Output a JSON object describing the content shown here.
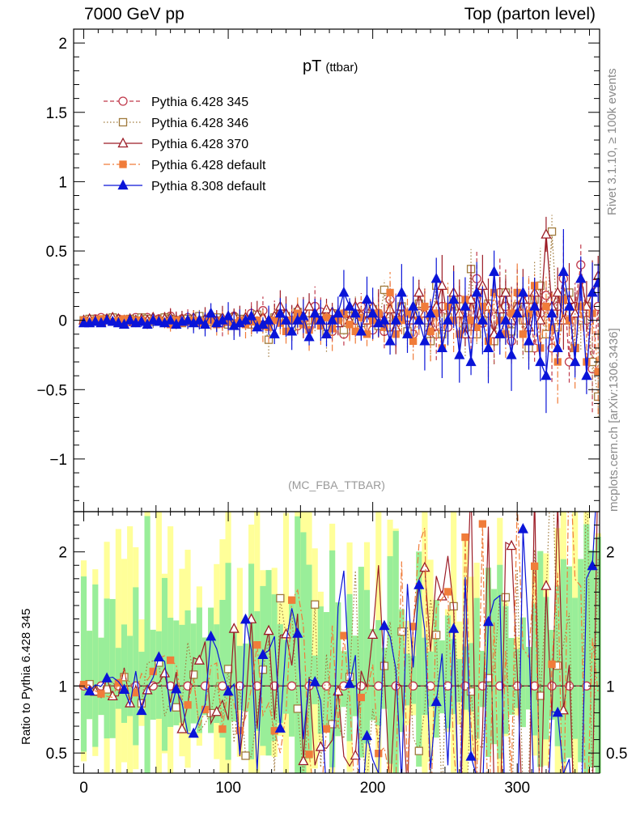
{
  "header": {
    "left": "7000 GeV pp",
    "right": "Top (parton level)"
  },
  "side_labels": {
    "rivet": "Rivet 3.1.10, ≥ 100k events",
    "mcplots": "mcplots.cern.ch [arXiv:1306.3436]"
  },
  "chart_data": {
    "type": "line",
    "title": "pT",
    "title_suffix": "(ttbar)",
    "analysis_label": "(MC_FBA_TTBAR)",
    "ratio_ylabel": "Ratio to Pythia 6.428 345",
    "xlim": [
      -7,
      357
    ],
    "main_ylim": [
      -1.38,
      2.1
    ],
    "ratio_ylim": [
      0.35,
      2.3
    ],
    "x_ticks": [
      0,
      100,
      200,
      300
    ],
    "main_y_ticks": [
      -1,
      -0.5,
      0,
      0.5,
      1,
      1.5,
      2
    ],
    "main_y_tick_labels": [
      "−1",
      "−0.5",
      "0",
      "0.5",
      "1",
      "1.5",
      "2"
    ],
    "ratio_y_ticks": [
      0.5,
      1,
      2
    ],
    "ratio_y_tick_labels": [
      "0.5",
      "1",
      "2"
    ],
    "legend_position": "top-left",
    "x_step": 4,
    "series": [
      {
        "name": "Pythia 6.428 345",
        "color": "#c0394b",
        "marker": "circle-open",
        "dash": "5,3",
        "values": [
          -0.01,
          0.0,
          0.01,
          0.02,
          0.01,
          0.0,
          0.01,
          0.0,
          -0.01,
          0.02,
          0.01,
          0.02,
          0.0,
          0.01,
          0.02,
          0.03,
          0.0,
          0.01,
          0.02,
          0.0,
          0.02,
          0.0,
          0.03,
          0.01,
          -0.02,
          0.0,
          0.03,
          0.0,
          -0.02,
          0.05,
          0.02,
          0.07,
          -0.02,
          0.02,
          0.05,
          0.0,
          -0.02,
          -0.04,
          0.01,
          -0.05,
          0.1,
          0.06,
          0.0,
          -0.08,
          0.0,
          -0.1,
          0.02,
          0.0,
          0.1,
          0.03,
          -0.07,
          0.05,
          -0.08,
          0.15,
          0.0,
          0.06,
          0.0,
          -0.1,
          0.05,
          0.02,
          0.07,
          -0.1,
          0.1,
          -0.05,
          0.12,
          0.15,
          0.0,
          -0.1,
          0.3,
          -0.02,
          0.05,
          -0.12,
          0.2,
          0.1,
          -0.15,
          0.1,
          0.0,
          0.15,
          -0.2,
          0.05,
          0.18,
          -0.2,
          0.1,
          0.3,
          -0.3,
          0.1,
          0.4,
          0.0,
          -0.35,
          0.1
        ]
      },
      {
        "name": "Pythia 6.428 346",
        "color": "#a07a3c",
        "marker": "square-open",
        "dash": "1.5,2.5",
        "values": [
          0.0,
          0.01,
          -0.01,
          0.0,
          0.01,
          0.02,
          -0.01,
          0.0,
          0.01,
          0.0,
          0.02,
          0.01,
          -0.01,
          0.0,
          0.02,
          0.01,
          0.0,
          -0.02,
          0.01,
          0.0,
          0.03,
          0.0,
          -0.01,
          0.02,
          0.0,
          -0.03,
          0.02,
          0.01,
          0.0,
          -0.03,
          0.04,
          -0.02,
          -0.14,
          0.02,
          0.05,
          0.03,
          -0.05,
          0.06,
          -0.02,
          0.0,
          0.0,
          0.02,
          -0.1,
          0.05,
          0.0,
          -0.07,
          0.03,
          0.05,
          -0.02,
          0.0,
          0.08,
          -0.04,
          0.22,
          -0.05,
          0.0,
          0.1,
          -0.08,
          0.05,
          0.12,
          0.0,
          -0.15,
          0.25,
          -0.1,
          0.02,
          0.15,
          0.1,
          -0.05,
          0.37,
          -0.1,
          0.0,
          0.12,
          -0.15,
          0.05,
          0.2,
          -0.08,
          0.1,
          0.0,
          -0.2,
          0.15,
          0.25,
          -0.1,
          0.64,
          -0.05,
          0.15,
          0.2,
          -0.2,
          0.0,
          0.1,
          -0.3,
          -0.55
        ]
      },
      {
        "name": "Pythia 6.428 370",
        "color": "#9c1c26",
        "marker": "triangle-open",
        "dash": "",
        "values": [
          0.0,
          0.01,
          0.0,
          -0.01,
          0.01,
          0.02,
          0.01,
          0.0,
          0.01,
          0.0,
          0.01,
          0.0,
          0.02,
          0.0,
          0.01,
          0.02,
          0.0,
          0.01,
          0.0,
          0.02,
          0.0,
          0.01,
          0.03,
          0.0,
          0.02,
          -0.01,
          0.03,
          0.0,
          0.02,
          0.0,
          0.04,
          0.02,
          0.0,
          0.03,
          0.1,
          0.05,
          0.0,
          0.08,
          0.02,
          0.1,
          0.05,
          0.0,
          0.08,
          0.06,
          -0.02,
          0.05,
          0.0,
          0.1,
          0.04,
          0.0,
          0.1,
          0.05,
          0.0,
          0.08,
          -0.05,
          0.1,
          0.02,
          0.0,
          0.2,
          0.05,
          -0.05,
          0.1,
          0.25,
          0.0,
          0.2,
          0.05,
          -0.1,
          0.15,
          0.0,
          0.25,
          0.1,
          -0.1,
          0.08,
          0.2,
          0.0,
          0.1,
          0.15,
          -0.05,
          0.2,
          0.0,
          0.62,
          0.1,
          0.2,
          0.0,
          0.15,
          0.05,
          0.3,
          0.1,
          0.2,
          0.32
        ]
      },
      {
        "name": "Pythia 6.428 default",
        "color": "#f07c3a",
        "marker": "square-filled",
        "dash": "8,3,2,3",
        "values": [
          0.0,
          -0.01,
          0.0,
          0.01,
          0.0,
          -0.01,
          0.0,
          0.01,
          -0.01,
          0.0,
          0.0,
          -0.02,
          0.0,
          0.0,
          -0.01,
          -0.03,
          0.0,
          -0.02,
          -0.01,
          0.0,
          -0.02,
          -0.01,
          0.0,
          -0.03,
          0.0,
          -0.01,
          -0.02,
          0.0,
          -0.03,
          -0.01,
          0.0,
          -0.04,
          -0.05,
          0.0,
          -0.02,
          -0.08,
          0.0,
          0.05,
          -0.03,
          -0.07,
          0.0,
          -0.04,
          0.02,
          -0.06,
          0.0,
          0.05,
          -0.03,
          -0.08,
          0.02,
          -0.1,
          0.0,
          0.05,
          -0.05,
          0.2,
          -0.1,
          0.0,
          0.05,
          -0.15,
          0.0,
          0.1,
          -0.08,
          0.05,
          -0.2,
          0.1,
          0.0,
          -0.1,
          0.15,
          0.0,
          -0.05,
          0.1,
          -0.15,
          0.2,
          0.0,
          -0.1,
          0.05,
          0.2,
          -0.1,
          0.05,
          0.25,
          -0.2,
          0.1,
          -0.05,
          -0.3,
          0.15,
          0.0,
          -0.2,
          0.1,
          -0.3,
          0.05,
          -0.37
        ]
      },
      {
        "name": "Pythia 8.308 default",
        "color": "#0a14d8",
        "marker": "triangle-filled",
        "dash": "",
        "values": [
          -0.02,
          -0.02,
          -0.01,
          -0.02,
          0.0,
          -0.01,
          -0.02,
          -0.03,
          0.0,
          -0.02,
          -0.01,
          -0.03,
          0.0,
          -0.01,
          -0.02,
          0.0,
          -0.03,
          -0.01,
          0.0,
          -0.02,
          0.0,
          -0.03,
          0.05,
          -0.02,
          0.0,
          0.03,
          -0.04,
          -0.02,
          0.0,
          0.03,
          -0.05,
          -0.03,
          0.0,
          -0.1,
          0.05,
          0.0,
          -0.08,
          0.0,
          0.03,
          -0.12,
          0.05,
          0.0,
          -0.1,
          0.0,
          0.05,
          0.2,
          0.1,
          0.05,
          -0.08,
          0.15,
          0.05,
          -0.02,
          0.0,
          -0.15,
          0.0,
          0.2,
          -0.1,
          0.1,
          0.0,
          -0.15,
          0.05,
          0.3,
          -0.2,
          0.0,
          0.15,
          -0.25,
          0.1,
          -0.3,
          0.2,
          0.0,
          -0.2,
          0.35,
          -0.1,
          0.0,
          -0.25,
          0.05,
          0.2,
          -0.15,
          0.1,
          -0.3,
          -0.4,
          0.05,
          -0.2,
          0.35,
          0.1,
          -0.3,
          0.3,
          -0.4,
          0.2,
          0.27
        ]
      }
    ]
  }
}
